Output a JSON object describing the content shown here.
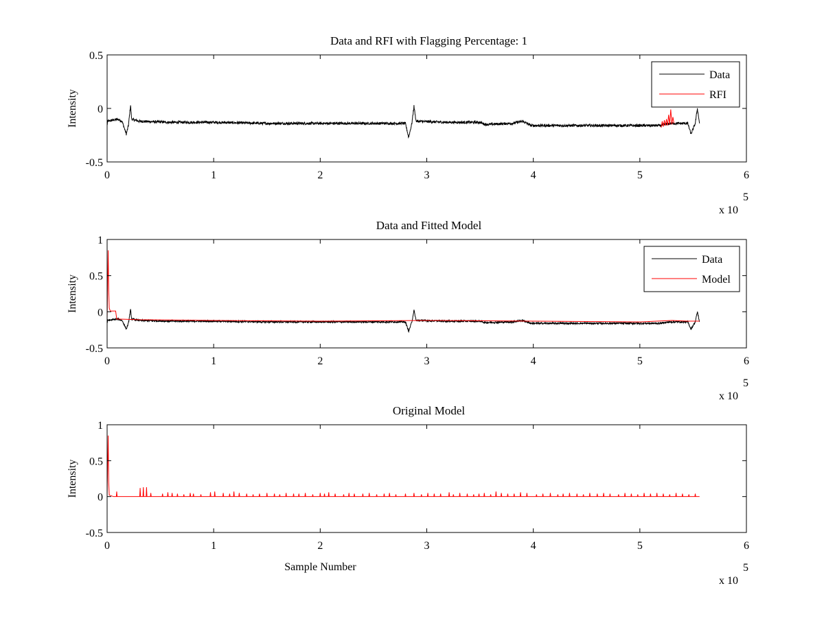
{
  "figure": {
    "background": "#ffffff"
  },
  "chart_data": [
    {
      "type": "line",
      "title": "Data and RFI with Flagging Percentage: 1",
      "xlabel": "",
      "ylabel": "Intensity",
      "xlim": [
        0,
        6
      ],
      "ylim": [
        -0.5,
        0.5
      ],
      "x_multiplier_label": "x 10",
      "x_multiplier_exponent": "5",
      "xticks": [
        "0",
        "1",
        "2",
        "3",
        "4",
        "5",
        "6"
      ],
      "yticks": [
        "-0.5",
        "0",
        "0.5"
      ],
      "xtick_values": [
        0,
        1,
        2,
        3,
        4,
        5,
        6
      ],
      "ytick_values": [
        -0.5,
        0,
        0.5
      ],
      "legend_position": "top-right",
      "grid": false,
      "series": [
        {
          "name": "Data",
          "color": "#000000",
          "noise": 0.012,
          "points": [
            [
              0.0,
              -0.16
            ],
            [
              0.005,
              -0.12
            ],
            [
              0.1,
              -0.1
            ],
            [
              0.14,
              -0.12
            ],
            [
              0.18,
              -0.24
            ],
            [
              0.2,
              -0.16
            ],
            [
              0.22,
              0.03
            ],
            [
              0.23,
              -0.1
            ],
            [
              0.3,
              -0.12
            ],
            [
              0.6,
              -0.13
            ],
            [
              1.0,
              -0.13
            ],
            [
              1.5,
              -0.14
            ],
            [
              2.0,
              -0.14
            ],
            [
              2.5,
              -0.14
            ],
            [
              2.8,
              -0.14
            ],
            [
              2.83,
              -0.27
            ],
            [
              2.86,
              -0.14
            ],
            [
              2.88,
              0.02
            ],
            [
              2.9,
              -0.12
            ],
            [
              3.2,
              -0.13
            ],
            [
              3.5,
              -0.13
            ],
            [
              3.55,
              -0.15
            ],
            [
              3.8,
              -0.14
            ],
            [
              3.9,
              -0.12
            ],
            [
              3.98,
              -0.16
            ],
            [
              4.5,
              -0.16
            ],
            [
              5.0,
              -0.16
            ],
            [
              5.2,
              -0.16
            ],
            [
              5.22,
              -0.15
            ],
            [
              5.3,
              -0.14
            ],
            [
              5.45,
              -0.14
            ],
            [
              5.48,
              -0.24
            ],
            [
              5.52,
              -0.14
            ],
            [
              5.54,
              0.0
            ],
            [
              5.56,
              -0.14
            ]
          ]
        },
        {
          "name": "RFI",
          "color": "#ff0000",
          "noise": 0.0,
          "points": [
            [
              5.2,
              -0.18
            ],
            [
              5.21,
              -0.12
            ],
            [
              5.22,
              -0.17
            ],
            [
              5.23,
              -0.11
            ],
            [
              5.24,
              -0.16
            ],
            [
              5.25,
              -0.1
            ],
            [
              5.26,
              -0.16
            ],
            [
              5.27,
              -0.06
            ],
            [
              5.28,
              -0.15
            ],
            [
              5.29,
              -0.01
            ],
            [
              5.3,
              -0.15
            ],
            [
              5.31,
              -0.08
            ],
            [
              5.32,
              -0.14
            ]
          ]
        }
      ]
    },
    {
      "type": "line",
      "title": "Data and Fitted Model",
      "xlabel": "",
      "ylabel": "Intensity",
      "xlim": [
        0,
        6
      ],
      "ylim": [
        -0.5,
        1
      ],
      "x_multiplier_label": "x 10",
      "x_multiplier_exponent": "5",
      "xticks": [
        "0",
        "1",
        "2",
        "3",
        "4",
        "5",
        "6"
      ],
      "yticks": [
        "-0.5",
        "0",
        "0.5",
        "1"
      ],
      "xtick_values": [
        0,
        1,
        2,
        3,
        4,
        5,
        6
      ],
      "ytick_values": [
        -0.5,
        0,
        0.5,
        1
      ],
      "legend_position": "top-right",
      "grid": false,
      "series": [
        {
          "name": "Data",
          "color": "#000000",
          "noise": 0.012,
          "points": [
            [
              0.0,
              -0.16
            ],
            [
              0.005,
              -0.12
            ],
            [
              0.1,
              -0.1
            ],
            [
              0.14,
              -0.12
            ],
            [
              0.18,
              -0.24
            ],
            [
              0.2,
              -0.16
            ],
            [
              0.22,
              0.03
            ],
            [
              0.23,
              -0.1
            ],
            [
              0.3,
              -0.12
            ],
            [
              0.6,
              -0.13
            ],
            [
              1.0,
              -0.13
            ],
            [
              1.5,
              -0.14
            ],
            [
              2.0,
              -0.14
            ],
            [
              2.5,
              -0.14
            ],
            [
              2.8,
              -0.14
            ],
            [
              2.83,
              -0.27
            ],
            [
              2.86,
              -0.14
            ],
            [
              2.88,
              0.02
            ],
            [
              2.9,
              -0.12
            ],
            [
              3.2,
              -0.13
            ],
            [
              3.5,
              -0.13
            ],
            [
              3.55,
              -0.15
            ],
            [
              3.8,
              -0.14
            ],
            [
              3.9,
              -0.12
            ],
            [
              3.98,
              -0.16
            ],
            [
              4.5,
              -0.16
            ],
            [
              5.0,
              -0.16
            ],
            [
              5.2,
              -0.16
            ],
            [
              5.22,
              -0.15
            ],
            [
              5.3,
              -0.14
            ],
            [
              5.45,
              -0.14
            ],
            [
              5.48,
              -0.24
            ],
            [
              5.52,
              -0.14
            ],
            [
              5.54,
              0.0
            ],
            [
              5.56,
              -0.14
            ]
          ]
        },
        {
          "name": "Model",
          "color": "#ff0000",
          "noise": 0.0,
          "points": [
            [
              0.0,
              -0.11
            ],
            [
              0.01,
              0.85
            ],
            [
              0.015,
              0.3
            ],
            [
              0.02,
              0.05
            ],
            [
              0.03,
              0.01
            ],
            [
              0.08,
              0.01
            ],
            [
              0.09,
              -0.1
            ],
            [
              0.3,
              -0.11
            ],
            [
              1.0,
              -0.12
            ],
            [
              2.0,
              -0.13
            ],
            [
              3.0,
              -0.12
            ],
            [
              4.0,
              -0.13
            ],
            [
              5.0,
              -0.14
            ],
            [
              5.3,
              -0.12
            ],
            [
              5.45,
              -0.13
            ],
            [
              5.56,
              -0.13
            ]
          ]
        }
      ]
    },
    {
      "type": "line",
      "title": "Original Model",
      "xlabel": "Sample Number",
      "ylabel": "Intensity",
      "xlim": [
        0,
        6
      ],
      "ylim": [
        -0.5,
        1
      ],
      "x_multiplier_label": "x 10",
      "x_multiplier_exponent": "5",
      "xticks": [
        "0",
        "1",
        "2",
        "3",
        "4",
        "5",
        "6"
      ],
      "yticks": [
        "-0.5",
        "0",
        "0.5",
        "1"
      ],
      "xtick_values": [
        0,
        1,
        2,
        3,
        4,
        5,
        6
      ],
      "ytick_values": [
        -0.5,
        0,
        0.5,
        1
      ],
      "grid": false,
      "series": [
        {
          "color": "#ff0000",
          "noise": 0.0,
          "points": [
            [
              0.0,
              0.0
            ],
            [
              0.01,
              0.85
            ],
            [
              0.015,
              0.2
            ],
            [
              0.02,
              0.02
            ],
            [
              0.06,
              0.0
            ],
            [
              5.56,
              0.0
            ]
          ],
          "spikes_x": [
            0.09,
            0.31,
            0.34,
            0.37,
            0.41,
            0.52,
            0.57,
            0.61,
            0.66,
            0.72,
            0.78,
            0.81,
            0.88,
            0.97,
            1.01,
            1.09,
            1.15,
            1.19,
            1.24,
            1.31,
            1.37,
            1.43,
            1.5,
            1.57,
            1.62,
            1.68,
            1.75,
            1.8,
            1.86,
            1.93,
            2.0,
            2.04,
            2.08,
            2.14,
            2.22,
            2.27,
            2.32,
            2.4,
            2.46,
            2.53,
            2.6,
            2.65,
            2.71,
            2.8,
            2.88,
            2.95,
            3.01,
            3.07,
            3.13,
            3.21,
            3.25,
            3.31,
            3.38,
            3.44,
            3.49,
            3.54,
            3.6,
            3.65,
            3.7,
            3.76,
            3.82,
            3.88,
            3.94,
            4.03,
            4.09,
            4.16,
            4.23,
            4.28,
            4.34,
            4.41,
            4.47,
            4.53,
            4.6,
            4.66,
            4.72,
            4.8,
            4.86,
            4.92,
            4.98,
            5.04,
            5.1,
            5.16,
            5.22,
            5.28,
            5.34,
            5.4,
            5.46,
            5.52
          ],
          "spikes_y": [
            0.07,
            0.12,
            0.13,
            0.13,
            0.05,
            0.04,
            0.06,
            0.05,
            0.04,
            0.03,
            0.05,
            0.04,
            0.03,
            0.06,
            0.07,
            0.05,
            0.04,
            0.07,
            0.05,
            0.04,
            0.03,
            0.04,
            0.05,
            0.04,
            0.03,
            0.05,
            0.04,
            0.04,
            0.05,
            0.03,
            0.05,
            0.04,
            0.06,
            0.04,
            0.03,
            0.05,
            0.04,
            0.04,
            0.05,
            0.03,
            0.04,
            0.05,
            0.03,
            0.04,
            0.05,
            0.03,
            0.05,
            0.04,
            0.04,
            0.06,
            0.03,
            0.05,
            0.04,
            0.03,
            0.04,
            0.05,
            0.03,
            0.07,
            0.05,
            0.04,
            0.04,
            0.06,
            0.05,
            0.03,
            0.04,
            0.05,
            0.03,
            0.04,
            0.05,
            0.04,
            0.03,
            0.05,
            0.04,
            0.05,
            0.04,
            0.03,
            0.05,
            0.04,
            0.03,
            0.05,
            0.04,
            0.05,
            0.04,
            0.03,
            0.05,
            0.04,
            0.03,
            0.04
          ]
        }
      ]
    }
  ]
}
